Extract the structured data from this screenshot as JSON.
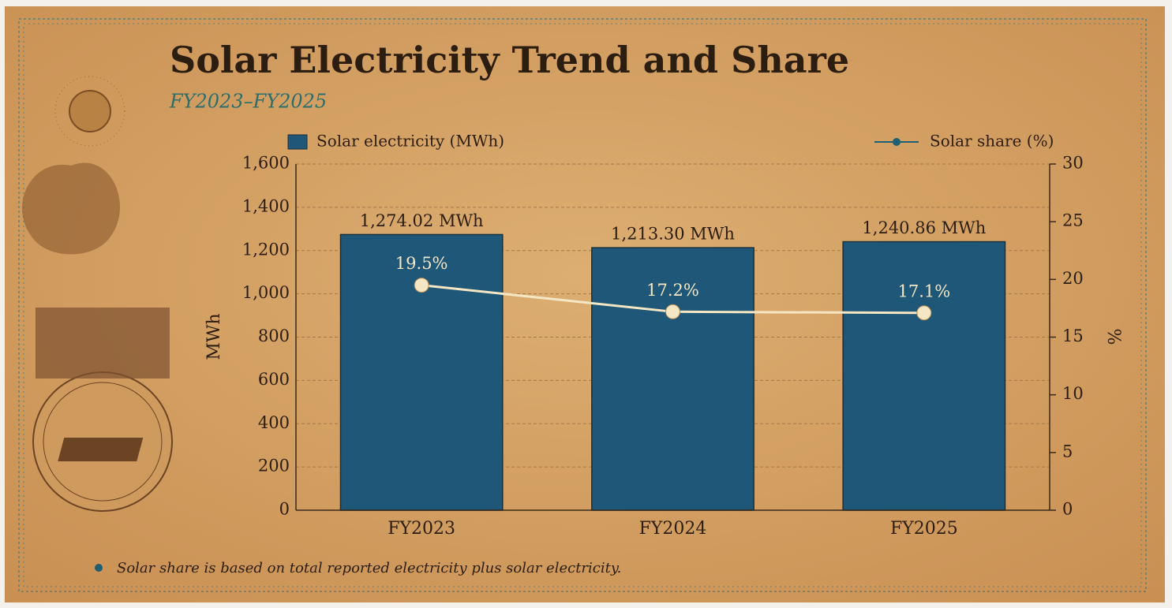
{
  "chart_data": {
    "type": "combo",
    "title": "Solar Electricity Trend and Share",
    "subtitle": "FY2023–FY2025",
    "y_label": "MWh",
    "y2_label": "%",
    "footnote": "Solar share is based on total reported electricity plus solar electricity.",
    "categories": [
      "FY2023",
      "FY2024",
      "FY2025"
    ],
    "series": [
      {
        "name": "Solar electricity (MWh)",
        "type": "bar",
        "color": "#1f5778",
        "values": [
          1274.02,
          1213.3,
          1240.86
        ],
        "value_labels": [
          "1,274.02 MWh",
          "1,213.30 MWh",
          "1,240.86 MWh"
        ]
      },
      {
        "name": "Solar share (%)",
        "type": "line",
        "axis": "y2",
        "color": "#f5e6c4",
        "legend_color": "#1f5f73",
        "values": [
          19.5,
          17.2,
          17.1
        ],
        "value_labels": [
          "19.5%",
          "17.2%",
          "17.1%"
        ]
      }
    ],
    "ylim": [
      0,
      1600
    ],
    "yticks": [
      0,
      200,
      400,
      600,
      800,
      {
        "value": 1000,
        "label": "1,000"
      },
      {
        "value": 1200,
        "label": "1,200"
      },
      {
        "value": 1400,
        "label": "1,400"
      },
      {
        "value": 1600,
        "label": "1,600"
      }
    ],
    "y2lim": [
      0,
      30
    ],
    "y2ticks": [
      0,
      5,
      10,
      15,
      20,
      25,
      30
    ],
    "grid": true
  }
}
